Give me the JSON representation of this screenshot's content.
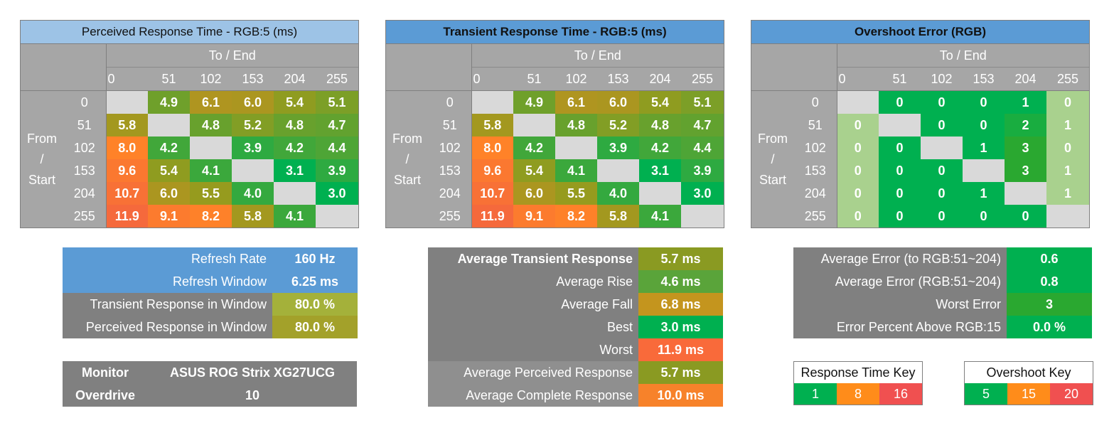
{
  "grids": {
    "perceived": {
      "title": "Perceived Response Time - RGB:5 (ms)",
      "to_end": "To / End",
      "from_start": [
        "From",
        "/",
        "Start"
      ],
      "cols": [
        "0",
        "51",
        "102",
        "153",
        "204",
        "255"
      ],
      "rows": [
        "0",
        "51",
        "102",
        "153",
        "204",
        "255"
      ],
      "cells": [
        [
          "",
          "4.9",
          "6.1",
          "6.0",
          "5.4",
          "5.1"
        ],
        [
          "5.8",
          "",
          "4.8",
          "5.2",
          "4.8",
          "4.7"
        ],
        [
          "8.0",
          "4.2",
          "",
          "3.9",
          "4.2",
          "4.4"
        ],
        [
          "9.6",
          "5.4",
          "4.1",
          "",
          "3.1",
          "3.9"
        ],
        [
          "10.7",
          "6.0",
          "5.5",
          "4.0",
          "",
          "3.0"
        ],
        [
          "11.9",
          "9.1",
          "8.2",
          "5.8",
          "4.1",
          ""
        ]
      ]
    },
    "transient": {
      "title": "Transient Response Time - RGB:5 (ms)",
      "to_end": "To / End",
      "from_start": [
        "From",
        "/",
        "Start"
      ],
      "cols": [
        "0",
        "51",
        "102",
        "153",
        "204",
        "255"
      ],
      "rows": [
        "0",
        "51",
        "102",
        "153",
        "204",
        "255"
      ],
      "cells": [
        [
          "",
          "4.9",
          "6.1",
          "6.0",
          "5.4",
          "5.1"
        ],
        [
          "5.8",
          "",
          "4.8",
          "5.2",
          "4.8",
          "4.7"
        ],
        [
          "8.0",
          "4.2",
          "",
          "3.9",
          "4.2",
          "4.4"
        ],
        [
          "9.6",
          "5.4",
          "4.1",
          "",
          "3.1",
          "3.9"
        ],
        [
          "10.7",
          "6.0",
          "5.5",
          "4.0",
          "",
          "3.0"
        ],
        [
          "11.9",
          "9.1",
          "8.2",
          "5.8",
          "4.1",
          ""
        ]
      ]
    },
    "overshoot": {
      "title": "Overshoot Error (RGB)",
      "to_end": "To / End",
      "from_start": [
        "From",
        "/",
        "Start"
      ],
      "cols": [
        "0",
        "51",
        "102",
        "153",
        "204",
        "255"
      ],
      "rows": [
        "0",
        "51",
        "102",
        "153",
        "204",
        "255"
      ],
      "cells": [
        [
          "",
          "0",
          "0",
          "0",
          "1",
          "0"
        ],
        [
          "0",
          "",
          "0",
          "0",
          "2",
          "1"
        ],
        [
          "0",
          "0",
          "",
          "1",
          "3",
          "0"
        ],
        [
          "0",
          "0",
          "0",
          "",
          "3",
          "1"
        ],
        [
          "0",
          "0",
          "0",
          "1",
          "",
          "1"
        ],
        [
          "0",
          "0",
          "0",
          "0",
          "0",
          ""
        ]
      ]
    }
  },
  "refresh_panel": {
    "rows": [
      {
        "label": "Refresh Rate",
        "value": "160 Hz"
      },
      {
        "label": "Refresh Window",
        "value": "6.25 ms"
      },
      {
        "label": "Transient Response in Window",
        "value": "80.0 %"
      },
      {
        "label": "Perceived Response in Window",
        "value": "80.0 %"
      }
    ]
  },
  "monitor_panel": {
    "monitor_label": "Monitor",
    "monitor_value": "ASUS ROG Strix XG27UCG",
    "overdrive_label": "Overdrive",
    "overdrive_value": "10"
  },
  "averages_panel": {
    "rows": [
      {
        "label": "Average Transient Response",
        "value": "5.7 ms"
      },
      {
        "label": "Average Rise",
        "value": "4.6 ms"
      },
      {
        "label": "Average Fall",
        "value": "6.8 ms"
      },
      {
        "label": "Best",
        "value": "3.0 ms"
      },
      {
        "label": "Worst",
        "value": "11.9 ms"
      },
      {
        "label": "Average Perceived Response",
        "value": "5.7 ms"
      },
      {
        "label": "Average Complete Response",
        "value": "10.0 ms"
      }
    ]
  },
  "error_panel": {
    "rows": [
      {
        "label": "Average Error (to RGB:51~204)",
        "value": "0.6"
      },
      {
        "label": "Average Error (RGB:51~204)",
        "value": "0.8"
      },
      {
        "label": "Worst Error",
        "value": "3"
      },
      {
        "label": "Error Percent Above RGB:15",
        "value": "0.0 %"
      }
    ]
  },
  "response_key": {
    "title": "Response Time Key",
    "values": [
      "1",
      "8",
      "16"
    ]
  },
  "overshoot_key": {
    "title": "Overshoot Key",
    "values": [
      "5",
      "15",
      "20"
    ]
  },
  "colors": {
    "green": "#00b050",
    "orange": "#ff8c1a",
    "red": "#f05050",
    "olive": "#8a9a22",
    "light_green": "#a9d18e",
    "header_blue": "#5b9bd5",
    "header_light_blue": "#9dc3e6",
    "header_gray": "#a6a6a6",
    "diagonal_gray": "#d9d9d9"
  }
}
